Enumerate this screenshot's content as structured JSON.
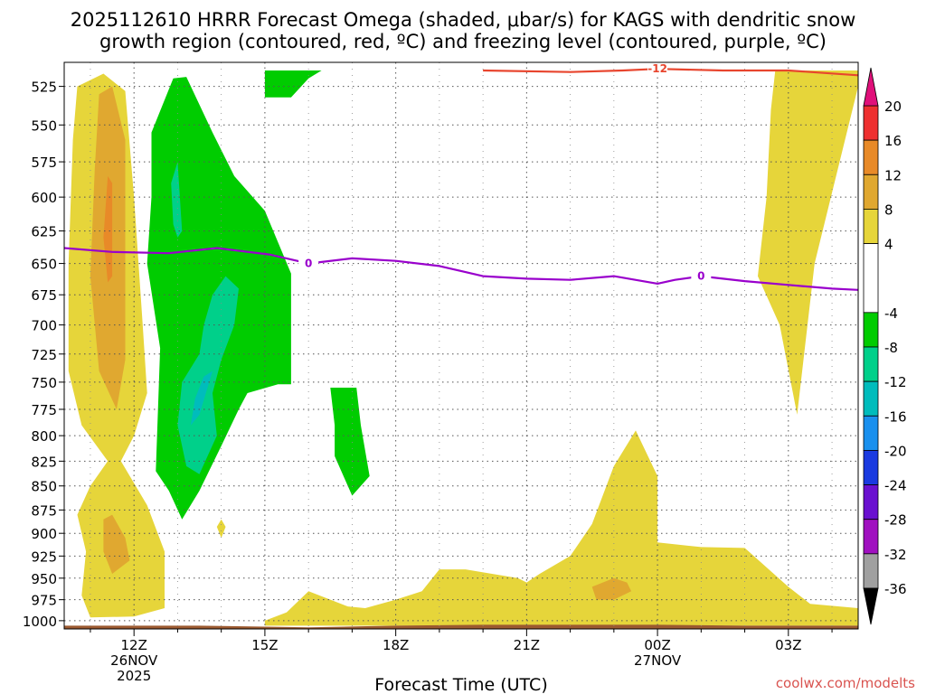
{
  "colors": {
    "omega_pos_4_8": "#e6d53a",
    "omega_pos_8_12": "#e0a830",
    "omega_pos_12_16": "#e88a28",
    "omega_neg_4_8": "#00cc00",
    "omega_neg_8_12": "#00d08a",
    "omega_neg_12_16": "#00bcbc",
    "dgz_contour": "#e8452e",
    "freezing_contour": "#9900cc",
    "terrain": "#9c5a30",
    "credit": "#d9534f"
  },
  "chart_data": {
    "type": "heatmap",
    "title_line1": "2025112610 HRRR Forecast Omega (shaded, μbar/s) for KAGS with dendritic snow",
    "title_line2": "growth region (contoured, red, ºC) and freezing level (contoured, purple, ºC)",
    "xlabel": "Forecast Time (UTC)",
    "x_axis": {
      "range_hours": [
        10.4,
        28.6
      ],
      "ticks": [
        {
          "hour": 12,
          "label": "12Z",
          "date": "26NOV",
          "year": "2025"
        },
        {
          "hour": 15,
          "label": "15Z",
          "date": "",
          "year": ""
        },
        {
          "hour": 18,
          "label": "18Z",
          "date": "",
          "year": ""
        },
        {
          "hour": 21,
          "label": "21Z",
          "date": "",
          "year": ""
        },
        {
          "hour": 24,
          "label": "00Z",
          "date": "27NOV",
          "year": ""
        },
        {
          "hour": 27,
          "label": "03Z",
          "date": "",
          "year": ""
        }
      ]
    },
    "y_axis": {
      "unit": "hPa",
      "range": [
        1010,
        510
      ],
      "ticks": [
        525,
        550,
        575,
        600,
        625,
        650,
        675,
        700,
        725,
        750,
        775,
        800,
        825,
        850,
        875,
        900,
        925,
        950,
        975,
        1000
      ],
      "scale": "log-pressure"
    },
    "grid": true,
    "colorbar": {
      "labels": [
        "20",
        "16",
        "12",
        "8",
        "4",
        "-4",
        "-8",
        "-12",
        "-16",
        "-20",
        "-24",
        "-28",
        "-32",
        "-36"
      ],
      "segments": [
        {
          "from": 16,
          "to": 20,
          "color": "#ee3030"
        },
        {
          "from": 12,
          "to": 16,
          "color": "#e88a28"
        },
        {
          "from": 8,
          "to": 12,
          "color": "#e0a830"
        },
        {
          "from": 4,
          "to": 8,
          "color": "#e6d53a"
        },
        {
          "from": -4,
          "to": 4,
          "color": "#ffffff"
        },
        {
          "from": -8,
          "to": -4,
          "color": "#00cc00"
        },
        {
          "from": -12,
          "to": -8,
          "color": "#00d08a"
        },
        {
          "from": -16,
          "to": -12,
          "color": "#00bcbc"
        },
        {
          "from": -20,
          "to": -16,
          "color": "#1a90ee"
        },
        {
          "from": -24,
          "to": -20,
          "color": "#1a3ae0"
        },
        {
          "from": -28,
          "to": -24,
          "color": "#6a10d0"
        },
        {
          "from": -32,
          "to": -28,
          "color": "#a010c0"
        },
        {
          "from": -36,
          "to": -32,
          "color": "#a0a0a0"
        }
      ],
      "top_arrow_color": "#e0107a",
      "bottom_arrow_color": "#000000"
    },
    "omega_regions": [
      {
        "value_range": "4 to 8",
        "color": "#e6d53a",
        "points": [
          [
            10.7,
            525
          ],
          [
            11.3,
            517
          ],
          [
            11.8,
            528
          ],
          [
            12.0,
            600
          ],
          [
            12.2,
            700
          ],
          [
            12.3,
            760
          ],
          [
            12.0,
            800
          ],
          [
            11.7,
            825
          ],
          [
            12.3,
            870
          ],
          [
            12.7,
            920
          ],
          [
            12.7,
            985
          ],
          [
            12.0,
            995
          ],
          [
            11.0,
            996
          ],
          [
            10.8,
            970
          ],
          [
            10.9,
            920
          ],
          [
            10.7,
            880
          ],
          [
            11.0,
            850
          ],
          [
            11.4,
            825
          ],
          [
            10.8,
            790
          ],
          [
            10.5,
            740
          ],
          [
            10.5,
            650
          ],
          [
            10.6,
            560
          ]
        ]
      },
      {
        "value_range": "8 to 12",
        "color": "#e0a830",
        "points": [
          [
            11.2,
            530
          ],
          [
            11.5,
            525
          ],
          [
            11.8,
            560
          ],
          [
            11.8,
            650
          ],
          [
            11.8,
            730
          ],
          [
            11.6,
            775
          ],
          [
            11.2,
            740
          ],
          [
            11.0,
            660
          ],
          [
            11.1,
            580
          ]
        ]
      },
      {
        "value_range": "12 to 16",
        "color": "#e88a28",
        "points": [
          [
            11.4,
            585
          ],
          [
            11.5,
            590
          ],
          [
            11.5,
            630
          ],
          [
            11.5,
            660
          ],
          [
            11.4,
            665
          ],
          [
            11.3,
            630
          ]
        ]
      },
      {
        "value_range": "8 to 12",
        "color": "#e0a830",
        "points": [
          [
            11.3,
            885
          ],
          [
            11.5,
            880
          ],
          [
            11.8,
            905
          ],
          [
            11.9,
            930
          ],
          [
            11.5,
            945
          ],
          [
            11.3,
            920
          ]
        ]
      },
      {
        "value_range": "4 to 8",
        "color": "#e6d53a",
        "points": [
          [
            14.0,
            885
          ],
          [
            14.1,
            893
          ],
          [
            14.0,
            905
          ],
          [
            13.9,
            893
          ]
        ]
      },
      {
        "value_range": "4 to 8",
        "color": "#e6d53a",
        "points": [
          [
            15.0,
            1000
          ],
          [
            15.5,
            990
          ],
          [
            16.0,
            965
          ],
          [
            16.9,
            983
          ],
          [
            17.3,
            985
          ],
          [
            18.0,
            975
          ],
          [
            18.6,
            965
          ],
          [
            19.0,
            940
          ],
          [
            19.6,
            940
          ],
          [
            20.8,
            950
          ],
          [
            21.0,
            955
          ],
          [
            21.3,
            945
          ],
          [
            22.0,
            925
          ],
          [
            22.5,
            890
          ],
          [
            23.0,
            830
          ],
          [
            23.5,
            795
          ],
          [
            24.0,
            840
          ],
          [
            24.0,
            910
          ],
          [
            25.0,
            915
          ],
          [
            26.0,
            916
          ],
          [
            27.0,
            960
          ],
          [
            27.5,
            980
          ],
          [
            28.6,
            985
          ],
          [
            28.6,
            1006
          ],
          [
            15.0,
            1006
          ]
        ]
      },
      {
        "value_range": "8 to 12",
        "color": "#e0a830",
        "points": [
          [
            22.5,
            960
          ],
          [
            23.0,
            950
          ],
          [
            23.3,
            955
          ],
          [
            23.4,
            965
          ],
          [
            23.0,
            975
          ],
          [
            22.6,
            975
          ]
        ]
      },
      {
        "value_range": "4 to 8",
        "color": "#e6d53a",
        "points": [
          [
            26.7,
            515
          ],
          [
            28.6,
            515
          ],
          [
            28.6,
            525
          ],
          [
            27.6,
            650
          ],
          [
            27.2,
            780
          ],
          [
            26.8,
            700
          ],
          [
            26.3,
            660
          ],
          [
            26.5,
            600
          ],
          [
            26.6,
            540
          ]
        ]
      },
      {
        "value_range": "-8 to -4",
        "color": "#00cc00",
        "points": [
          [
            12.4,
            555
          ],
          [
            12.9,
            520
          ],
          [
            13.2,
            519
          ],
          [
            13.8,
            555
          ],
          [
            14.3,
            585
          ],
          [
            15.0,
            610
          ],
          [
            15.6,
            658
          ],
          [
            15.6,
            700
          ],
          [
            15.6,
            752
          ],
          [
            15.3,
            752
          ],
          [
            14.6,
            760
          ],
          [
            14.4,
            775
          ],
          [
            14.0,
            810
          ],
          [
            13.5,
            855
          ],
          [
            13.1,
            885
          ],
          [
            12.8,
            855
          ],
          [
            12.5,
            835
          ],
          [
            12.6,
            720
          ],
          [
            12.3,
            650
          ],
          [
            12.4,
            600
          ]
        ]
      },
      {
        "value_range": "-8 to -4",
        "color": "#00cc00",
        "points": [
          [
            15.0,
            515
          ],
          [
            16.3,
            515
          ],
          [
            16.0,
            520
          ],
          [
            15.6,
            532
          ],
          [
            15.0,
            532
          ]
        ]
      },
      {
        "value_range": "-8 to -4",
        "color": "#00cc00",
        "points": [
          [
            16.5,
            755
          ],
          [
            17.1,
            755
          ],
          [
            17.2,
            790
          ],
          [
            17.4,
            840
          ],
          [
            17.0,
            860
          ],
          [
            16.6,
            820
          ],
          [
            16.6,
            790
          ]
        ]
      },
      {
        "value_range": "-12 to -8",
        "color": "#00d08a",
        "points": [
          [
            14.1,
            660
          ],
          [
            14.4,
            670
          ],
          [
            14.3,
            700
          ],
          [
            14.0,
            730
          ],
          [
            13.8,
            760
          ],
          [
            13.9,
            800
          ],
          [
            13.5,
            838
          ],
          [
            13.2,
            830
          ],
          [
            13.0,
            790
          ],
          [
            13.1,
            750
          ],
          [
            13.5,
            725
          ],
          [
            13.6,
            700
          ],
          [
            13.8,
            675
          ]
        ]
      },
      {
        "value_range": "-12 to -8",
        "color": "#00d08a",
        "points": [
          [
            12.85,
            590
          ],
          [
            13.0,
            575
          ],
          [
            13.1,
            625
          ],
          [
            13.0,
            630
          ],
          [
            12.9,
            620
          ]
        ]
      },
      {
        "value_range": "-16 to -12",
        "color": "#00bcbc",
        "points": [
          [
            13.6,
            745
          ],
          [
            13.8,
            740
          ],
          [
            13.5,
            780
          ],
          [
            13.3,
            790
          ],
          [
            13.4,
            765
          ]
        ]
      }
    ],
    "contours": [
      {
        "name": "dendritic snow growth region",
        "value": -12,
        "color": "#e8452e",
        "label": "-12",
        "label_at": [
          24.0,
          514
        ],
        "points": [
          [
            20.0,
            515
          ],
          [
            22.0,
            516
          ],
          [
            23.2,
            515
          ],
          [
            24.0,
            514
          ],
          [
            25.5,
            515
          ],
          [
            27.0,
            515
          ],
          [
            28.6,
            518
          ]
        ]
      },
      {
        "name": "freezing level",
        "value": 0,
        "color": "#9900cc",
        "label": "0",
        "label_at": [
          16.0,
          650
        ],
        "label2": "0",
        "label2_at": [
          25.0,
          660
        ],
        "points": [
          [
            10.4,
            638
          ],
          [
            11.5,
            641
          ],
          [
            12.8,
            642
          ],
          [
            13.9,
            638
          ],
          [
            15.1,
            643
          ],
          [
            16.0,
            650
          ],
          [
            17.0,
            646
          ],
          [
            18.0,
            648
          ],
          [
            19.0,
            652
          ],
          [
            20.0,
            660
          ],
          [
            21.0,
            662
          ],
          [
            22.0,
            663
          ],
          [
            23.0,
            660
          ],
          [
            24.0,
            666
          ],
          [
            24.4,
            663
          ],
          [
            25.0,
            660
          ],
          [
            26.0,
            664
          ],
          [
            27.0,
            667
          ],
          [
            28.0,
            670
          ],
          [
            28.6,
            671
          ]
        ]
      }
    ],
    "terrain": {
      "name": "surface",
      "points": [
        [
          10.4,
          1006
        ],
        [
          13.5,
          1006
        ],
        [
          16.0,
          1008
        ],
        [
          18.0,
          1006
        ],
        [
          20.0,
          1005
        ],
        [
          22.0,
          1005
        ],
        [
          24.0,
          1005
        ],
        [
          26.0,
          1006
        ],
        [
          28.6,
          1006
        ]
      ]
    },
    "credit": "coolwx.com/modelts"
  }
}
